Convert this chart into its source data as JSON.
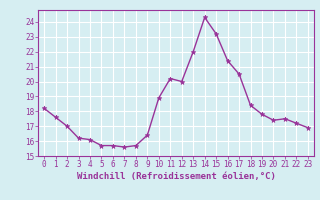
{
  "x": [
    0,
    1,
    2,
    3,
    4,
    5,
    6,
    7,
    8,
    9,
    10,
    11,
    12,
    13,
    14,
    15,
    16,
    17,
    18,
    19,
    20,
    21,
    22,
    23
  ],
  "y": [
    18.2,
    17.6,
    17.0,
    16.2,
    16.1,
    15.7,
    15.7,
    15.6,
    15.7,
    16.4,
    18.9,
    20.2,
    20.0,
    22.0,
    24.3,
    23.2,
    21.4,
    20.5,
    18.4,
    17.8,
    17.4,
    17.5,
    17.2,
    16.9
  ],
  "line_color": "#993399",
  "marker": "*",
  "marker_size": 3.5,
  "bg_color": "#d6eef2",
  "grid_color": "#ffffff",
  "xlabel": "Windchill (Refroidissement éolien,°C)",
  "ylim": [
    15,
    24.8
  ],
  "xlim": [
    -0.5,
    23.5
  ],
  "yticks": [
    15,
    16,
    17,
    18,
    19,
    20,
    21,
    22,
    23,
    24
  ],
  "xticks": [
    0,
    1,
    2,
    3,
    4,
    5,
    6,
    7,
    8,
    9,
    10,
    11,
    12,
    13,
    14,
    15,
    16,
    17,
    18,
    19,
    20,
    21,
    22,
    23
  ],
  "tick_color": "#993399",
  "tick_fontsize": 5.5,
  "xlabel_fontsize": 6.5,
  "xlabel_color": "#993399",
  "spine_color": "#993399",
  "linewidth": 1.0
}
